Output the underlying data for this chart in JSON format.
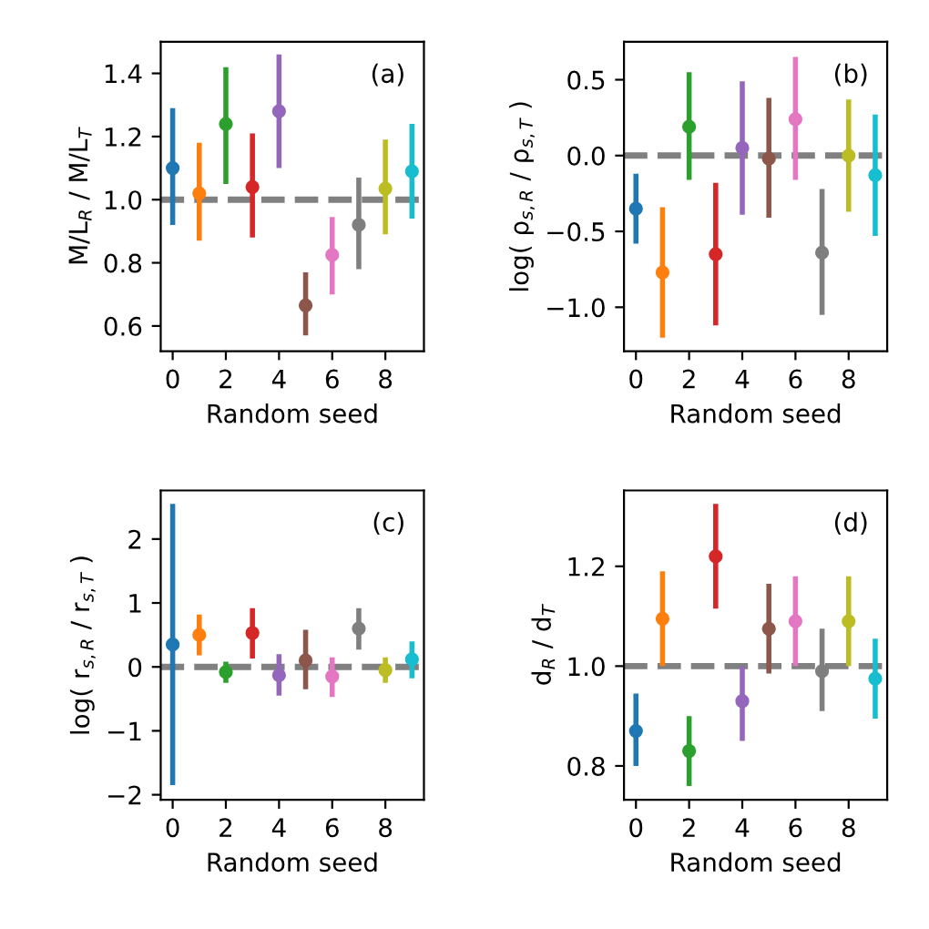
{
  "chart_data": [
    {
      "type": "scatter",
      "x": [
        0,
        1,
        2,
        3,
        4,
        5,
        6,
        7,
        8,
        9
      ],
      "xlabel": "Random seed",
      "ylabel": "M/L$_{R}$ / M/L$_{T}$",
      "annotations": [
        "(a)"
      ],
      "marker": "circle",
      "grid": false,
      "legend": false,
      "xlim": [
        -0.45,
        9.45
      ],
      "xticks": [
        0,
        2,
        4,
        6,
        8
      ],
      "ylim": [
        0.52,
        1.5
      ],
      "yticks": [
        {
          "value": 0.6,
          "label": "0.6"
        },
        {
          "value": 0.8,
          "label": "0.8"
        },
        {
          "value": 1.0,
          "label": "1.0"
        },
        {
          "value": 1.2,
          "label": "1.2"
        },
        {
          "value": 1.4,
          "label": "1.4"
        }
      ],
      "ref_lines": [
        {
          "axis": "y",
          "value": 1,
          "color": "#808080",
          "line_style": "dashed"
        }
      ],
      "series": [
        {
          "colors": [
            "#1f77b4",
            "#ff7f0e",
            "#2ca02c",
            "#d62728",
            "#9467bd",
            "#8c564b",
            "#e377c2",
            "#7f7f7f",
            "#bcbd22",
            "#17becf"
          ],
          "values": [
            1.1,
            1.02,
            1.24,
            1.04,
            1.28,
            0.665,
            0.825,
            0.92,
            1.035,
            1.09
          ],
          "errors": [
            [
              0.92,
              1.29
            ],
            [
              0.87,
              1.18
            ],
            [
              1.05,
              1.42
            ],
            [
              0.88,
              1.21
            ],
            [
              1.1,
              1.46
            ],
            [
              0.57,
              0.77
            ],
            [
              0.7,
              0.945
            ],
            [
              0.78,
              1.07
            ],
            [
              0.89,
              1.19
            ],
            [
              0.94,
              1.24
            ]
          ]
        }
      ]
    },
    {
      "type": "scatter",
      "x": [
        0,
        1,
        2,
        3,
        4,
        5,
        6,
        7,
        8,
        9
      ],
      "xlabel": "Random seed",
      "ylabel": "log( ρ$_{s,R}$ / ρ$_{s,T}$ )",
      "annotations": [
        "(b)"
      ],
      "marker": "circle",
      "grid": false,
      "legend": false,
      "xlim": [
        -0.45,
        9.45
      ],
      "xticks": [
        0,
        2,
        4,
        6,
        8
      ],
      "ylim": [
        -1.29,
        0.75
      ],
      "yticks": [
        {
          "value": -1.0,
          "label": "−1.0"
        },
        {
          "value": -0.5,
          "label": "−0.5"
        },
        {
          "value": 0.0,
          "label": "0.0"
        },
        {
          "value": 0.5,
          "label": "0.5"
        }
      ],
      "ref_lines": [
        {
          "axis": "y",
          "value": 0,
          "color": "#808080",
          "line_style": "dashed"
        }
      ],
      "series": [
        {
          "colors": [
            "#1f77b4",
            "#ff7f0e",
            "#2ca02c",
            "#d62728",
            "#9467bd",
            "#8c564b",
            "#e377c2",
            "#7f7f7f",
            "#bcbd22",
            "#17becf"
          ],
          "values": [
            -0.35,
            -0.77,
            0.19,
            -0.65,
            0.05,
            -0.02,
            0.24,
            -0.64,
            0.0,
            -0.13
          ],
          "errors": [
            [
              -0.58,
              -0.12
            ],
            [
              -1.2,
              -0.34
            ],
            [
              -0.16,
              0.55
            ],
            [
              -1.12,
              -0.18
            ],
            [
              -0.39,
              0.49
            ],
            [
              -0.41,
              0.38
            ],
            [
              -0.16,
              0.65
            ],
            [
              -1.05,
              -0.22
            ],
            [
              -0.37,
              0.37
            ],
            [
              -0.53,
              0.27
            ]
          ]
        }
      ]
    },
    {
      "type": "scatter",
      "x": [
        0,
        1,
        2,
        3,
        4,
        5,
        6,
        7,
        8,
        9
      ],
      "xlabel": "Random seed",
      "ylabel": "log( r$_{s,R}$ / r$_{s,T}$ )",
      "annotations": [
        "(c)"
      ],
      "marker": "circle",
      "grid": false,
      "legend": false,
      "xlim": [
        -0.45,
        9.45
      ],
      "xticks": [
        0,
        2,
        4,
        6,
        8
      ],
      "ylim": [
        -2.08,
        2.76
      ],
      "yticks": [
        {
          "value": -2,
          "label": "−2"
        },
        {
          "value": -1,
          "label": "−1"
        },
        0,
        1,
        2
      ],
      "ref_lines": [
        {
          "axis": "y",
          "value": 0,
          "color": "#808080",
          "line_style": "dashed"
        }
      ],
      "series": [
        {
          "colors": [
            "#1f77b4",
            "#ff7f0e",
            "#2ca02c",
            "#d62728",
            "#9467bd",
            "#8c564b",
            "#e377c2",
            "#7f7f7f",
            "#bcbd22",
            "#17becf"
          ],
          "values": [
            0.35,
            0.5,
            -0.08,
            0.53,
            -0.13,
            0.1,
            -0.15,
            0.6,
            -0.05,
            0.12
          ],
          "errors": [
            [
              -1.85,
              2.55
            ],
            [
              0.18,
              0.82
            ],
            [
              -0.25,
              0.08
            ],
            [
              0.13,
              0.92
            ],
            [
              -0.45,
              0.2
            ],
            [
              -0.35,
              0.58
            ],
            [
              -0.47,
              0.15
            ],
            [
              0.27,
              0.92
            ],
            [
              -0.25,
              0.15
            ],
            [
              -0.18,
              0.4
            ]
          ]
        }
      ]
    },
    {
      "type": "scatter",
      "x": [
        0,
        1,
        2,
        3,
        4,
        5,
        6,
        7,
        8,
        9
      ],
      "xlabel": "Random seed",
      "ylabel": "d$_{R}$ / d$_{T}$",
      "annotations": [
        "(d)"
      ],
      "marker": "circle",
      "grid": false,
      "legend": false,
      "xlim": [
        -0.45,
        9.45
      ],
      "xticks": [
        0,
        2,
        4,
        6,
        8
      ],
      "ylim": [
        0.732,
        1.352
      ],
      "yticks": [
        {
          "value": 0.8,
          "label": "0.8"
        },
        {
          "value": 1.0,
          "label": "1.0"
        },
        {
          "value": 1.2,
          "label": "1.2"
        }
      ],
      "ref_lines": [
        {
          "axis": "y",
          "value": 1,
          "color": "#808080",
          "line_style": "dashed"
        }
      ],
      "series": [
        {
          "colors": [
            "#1f77b4",
            "#ff7f0e",
            "#2ca02c",
            "#d62728",
            "#9467bd",
            "#8c564b",
            "#e377c2",
            "#7f7f7f",
            "#bcbd22",
            "#17becf"
          ],
          "values": [
            0.87,
            1.095,
            0.83,
            1.22,
            0.93,
            1.075,
            1.09,
            0.99,
            1.09,
            0.975
          ],
          "errors": [
            [
              0.8,
              0.945
            ],
            [
              1.0,
              1.19
            ],
            [
              0.76,
              0.9
            ],
            [
              1.115,
              1.325
            ],
            [
              0.85,
              1.0
            ],
            [
              0.985,
              1.165
            ],
            [
              1.0,
              1.18
            ],
            [
              0.91,
              1.075
            ],
            [
              1.0,
              1.18
            ],
            [
              0.895,
              1.055
            ]
          ]
        }
      ]
    }
  ]
}
